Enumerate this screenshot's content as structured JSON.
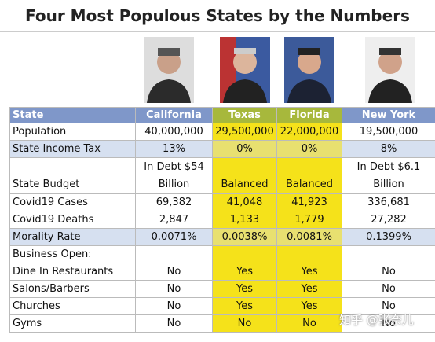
{
  "header": {
    "title": "Four Most Populous States by the Numbers"
  },
  "table": {
    "columns": [
      "State",
      "California",
      "Texas",
      "Florida",
      "New York"
    ],
    "rows": [
      {
        "label": "Population",
        "cells": [
          "40,000,000",
          "29,500,000",
          "22,000,000",
          "19,500,000"
        ]
      },
      {
        "label": "State Income Tax",
        "cells": [
          "13%",
          "0%",
          "0%",
          "8%"
        ]
      },
      {
        "label": "State Budget",
        "cells": [
          "In Debt $54 Billion",
          "Balanced",
          "Balanced",
          "In Debt $6.1 Billion"
        ]
      },
      {
        "label": "Covid19 Cases",
        "cells": [
          "69,382",
          "41,048",
          "41,923",
          "336,681"
        ]
      },
      {
        "label": "Covid19 Deaths",
        "cells": [
          "2,847",
          "1,133",
          "1,779",
          "27,282"
        ]
      },
      {
        "label": "Morality Rate",
        "cells": [
          "0.0071%",
          "0.0038%",
          "0.0081%",
          "0.1399%"
        ]
      },
      {
        "label": "Business Open:"
      },
      {
        "label": "Dine In Restaurants",
        "cells": [
          "No",
          "Yes",
          "Yes",
          "No"
        ]
      },
      {
        "label": "Salons/Barbers",
        "cells": [
          "No",
          "Yes",
          "Yes",
          "No"
        ]
      },
      {
        "label": "Churches",
        "cells": [
          "No",
          "Yes",
          "Yes",
          "No"
        ]
      },
      {
        "label": "Gyms",
        "cells": [
          "No",
          "No",
          "No",
          "No"
        ]
      }
    ]
  },
  "watermark": "知乎 @张奈儿"
}
